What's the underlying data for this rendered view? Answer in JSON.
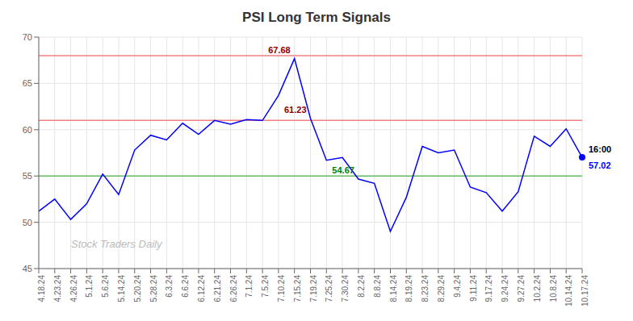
{
  "chart_data": {
    "type": "line",
    "title": "PSI Long Term Signals",
    "categories": [
      "4.18.24",
      "4.23.24",
      "4.26.24",
      "5.1.24",
      "5.6.24",
      "5.14.24",
      "5.20.24",
      "5.28.24",
      "6.3.24",
      "6.6.24",
      "6.12.24",
      "6.21.24",
      "6.26.24",
      "7.1.24",
      "7.5.24",
      "7.10.24",
      "7.15.24",
      "7.19.24",
      "7.25.24",
      "7.30.24",
      "8.2.24",
      "8.8.24",
      "8.14.24",
      "8.19.24",
      "8.23.24",
      "8.29.24",
      "9.4.24",
      "9.11.24",
      "9.17.24",
      "9.24.24",
      "9.27.24",
      "10.2.24",
      "10.8.24",
      "10.14.24",
      "10.17.24"
    ],
    "values": [
      51.2,
      52.5,
      50.3,
      52.0,
      55.2,
      53.0,
      57.8,
      59.4,
      58.9,
      60.7,
      59.5,
      61.0,
      60.6,
      61.1,
      61.0,
      63.7,
      67.68,
      61.23,
      56.7,
      57.0,
      54.67,
      54.2,
      49.0,
      52.7,
      58.2,
      57.5,
      57.8,
      53.8,
      53.2,
      51.2,
      53.3,
      59.3,
      58.2,
      60.1,
      57.02
    ],
    "color": "blue",
    "ylim": [
      45,
      70
    ],
    "yticks": [
      45,
      50,
      55,
      60,
      65,
      70
    ],
    "grid": true,
    "reference_lines": [
      {
        "value": 68.0,
        "color": "#f08080"
      },
      {
        "value": 61.0,
        "color": "#f08080"
      },
      {
        "value": 55.0,
        "color": "#66bb66"
      }
    ],
    "annotations": [
      {
        "text": "67.68",
        "x": "7.15.24",
        "y": 67.68,
        "color": "darkred"
      },
      {
        "text": "61.23",
        "x": "7.19.24",
        "y": 61.23,
        "color": "darkred"
      },
      {
        "text": "54.67",
        "x": "8.2.24",
        "y": 54.67,
        "color": "green"
      }
    ],
    "end_marker": {
      "x": "10.17.24",
      "y": 57.02,
      "label": "16:00",
      "marker": "o"
    },
    "watermark": "Stock Traders Daily"
  }
}
